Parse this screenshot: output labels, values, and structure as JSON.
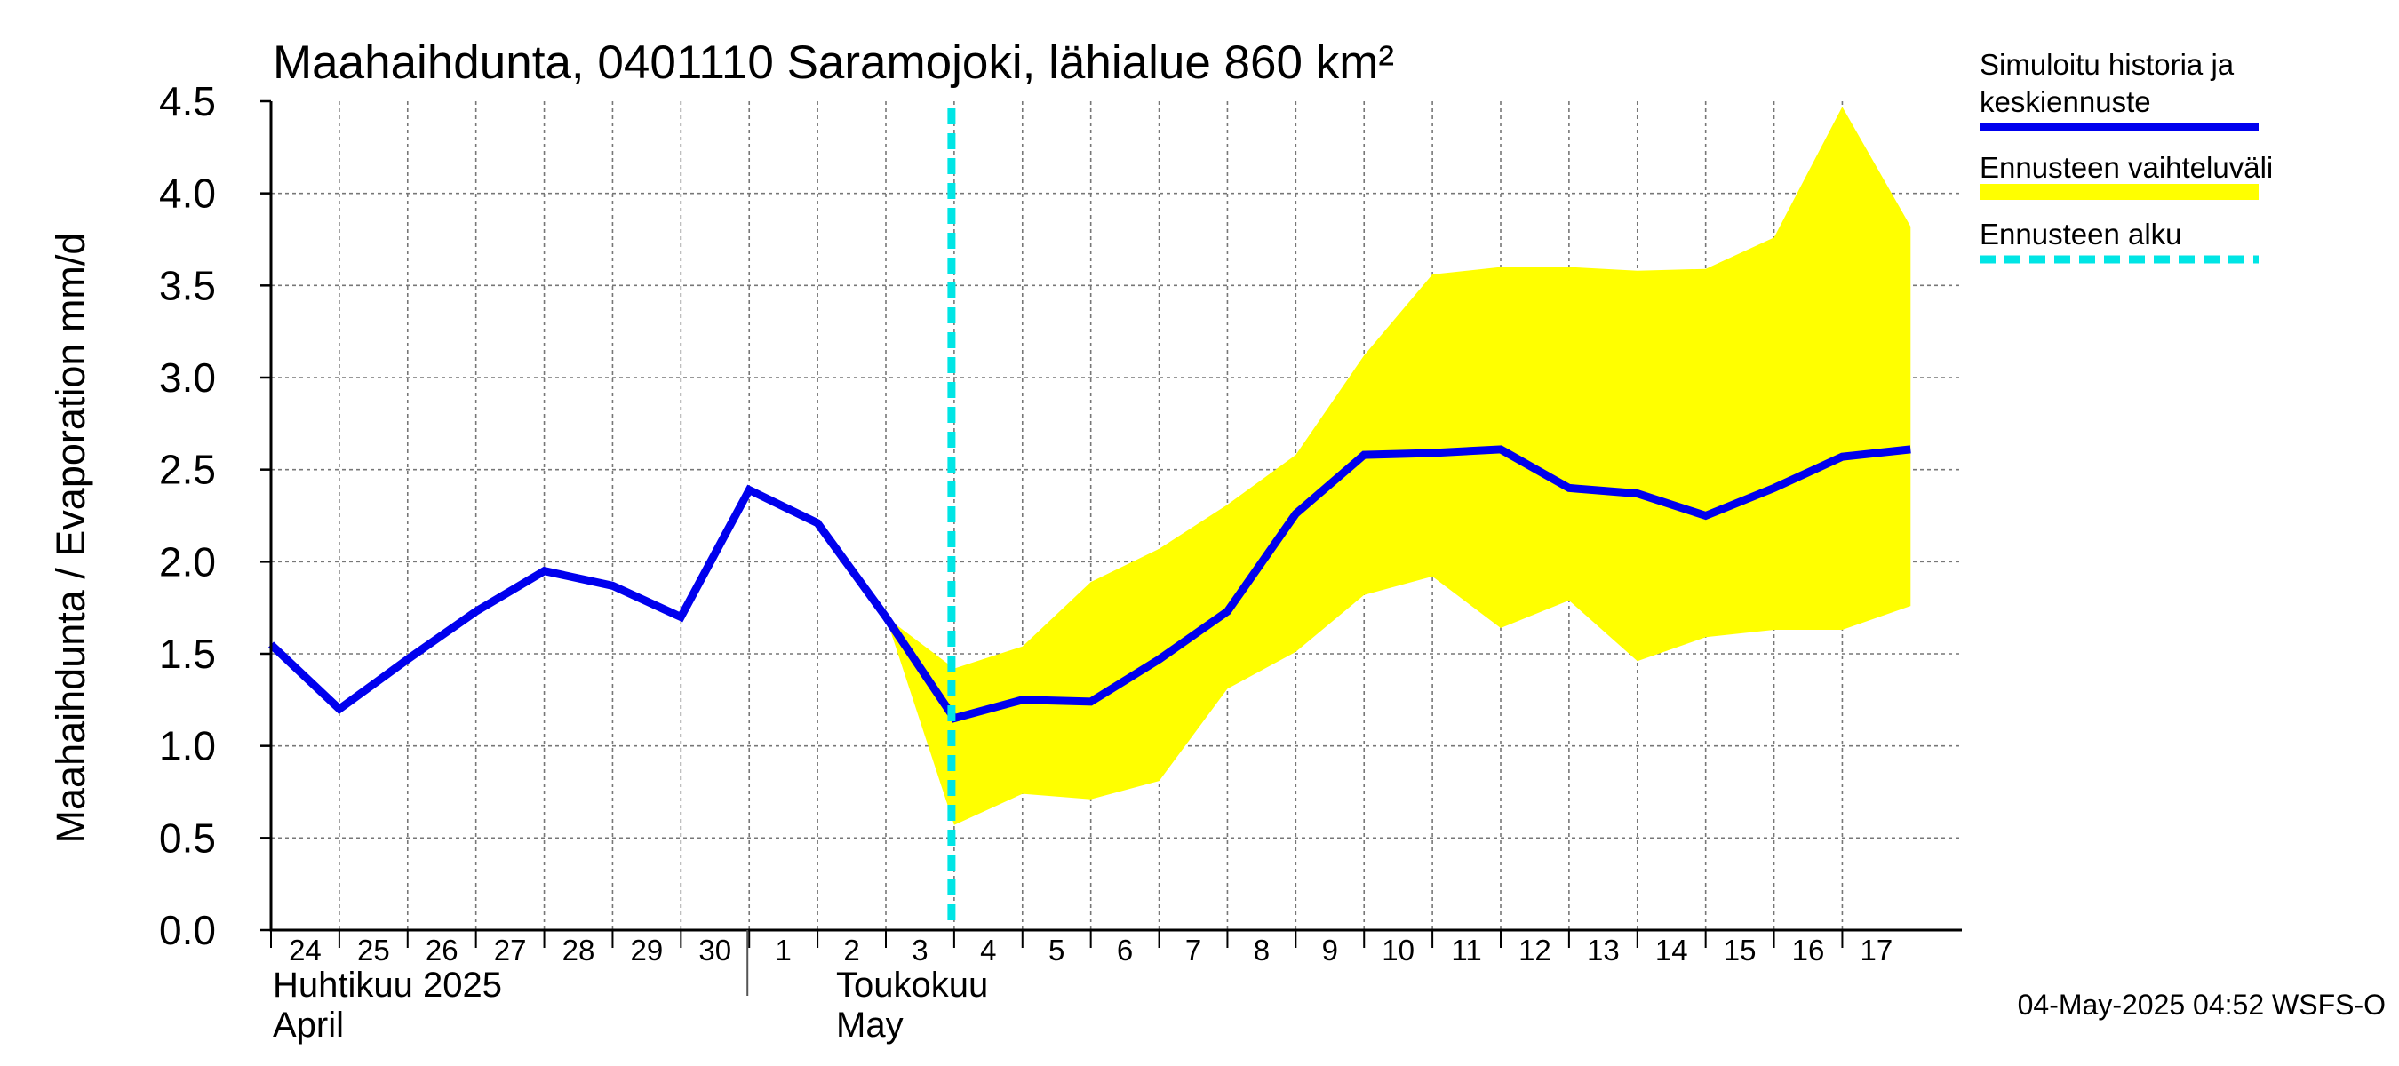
{
  "chart_data": {
    "type": "line",
    "title": "Maahaihdunta, 0401110 Saramojoki, lähialue 860 km²",
    "ylabel": "Maahaihdunta / Evaporation   mm/d",
    "ylim": [
      0,
      4.5
    ],
    "yticks": [
      "0.0",
      "0.5",
      "1.0",
      "1.5",
      "2.0",
      "2.5",
      "3.0",
      "3.5",
      "4.0",
      "4.5"
    ],
    "x": [
      "2025-04-24",
      "2025-04-25",
      "2025-04-26",
      "2025-04-27",
      "2025-04-28",
      "2025-04-29",
      "2025-04-30",
      "2025-05-01",
      "2025-05-02",
      "2025-05-03",
      "2025-05-04",
      "2025-05-05",
      "2025-05-06",
      "2025-05-07",
      "2025-05-08",
      "2025-05-09",
      "2025-05-10",
      "2025-05-11",
      "2025-05-12",
      "2025-05-13",
      "2025-05-14",
      "2025-05-15",
      "2025-05-16",
      "2025-05-17",
      "2025-05-18"
    ],
    "xtick_labels": [
      "24",
      "25",
      "26",
      "27",
      "28",
      "29",
      "30",
      "1",
      "2",
      "3",
      "4",
      "5",
      "6",
      "7",
      "8",
      "9",
      "10",
      "11",
      "12",
      "13",
      "14",
      "15",
      "16",
      "17"
    ],
    "month_labels": {
      "april_fi": "Huhtikuu  2025",
      "april_en": "April",
      "may_fi": "Toukokuu",
      "may_en": "May"
    },
    "series": [
      {
        "name": "Simuloitu historia ja keskiennuste",
        "color": "#0000ee",
        "values": [
          1.55,
          1.2,
          1.47,
          1.73,
          1.95,
          1.87,
          1.7,
          2.39,
          2.21,
          1.7,
          1.15,
          1.25,
          1.24,
          1.47,
          1.73,
          2.26,
          2.58,
          2.59,
          2.61,
          2.4,
          2.37,
          2.25,
          2.4,
          2.57,
          2.61
        ]
      }
    ],
    "band": {
      "name": "Ennusteen vaihteluväli",
      "color": "#ffff00",
      "start_index": 9,
      "upper": [
        1.7,
        1.42,
        1.54,
        1.89,
        2.07,
        2.31,
        2.58,
        3.12,
        3.56,
        3.6,
        3.6,
        3.58,
        3.59,
        3.76,
        4.47,
        3.82
      ],
      "lower": [
        1.7,
        0.57,
        0.74,
        0.71,
        0.81,
        1.31,
        1.51,
        1.82,
        1.92,
        1.64,
        1.79,
        1.46,
        1.59,
        1.63,
        1.63,
        1.76
      ]
    },
    "forecast_start": {
      "name": "Ennusteen alku",
      "color": "#00e5e5",
      "x_value": "2025-05-04"
    },
    "legend": {
      "placement": "right",
      "entries": [
        {
          "line1": "Simuloitu historia ja",
          "line2": "keskiennuste",
          "color": "#0000ee",
          "style": "solid"
        },
        {
          "line1": "Ennusteen vaihteluväli",
          "line2": "",
          "color": "#ffff00",
          "style": "band"
        },
        {
          "line1": "Ennusteen alku",
          "line2": "",
          "color": "#00e5e5",
          "style": "dashed"
        }
      ]
    },
    "grid": true
  },
  "footer": {
    "timestamp": "04-May-2025 04:52 WSFS-O"
  }
}
